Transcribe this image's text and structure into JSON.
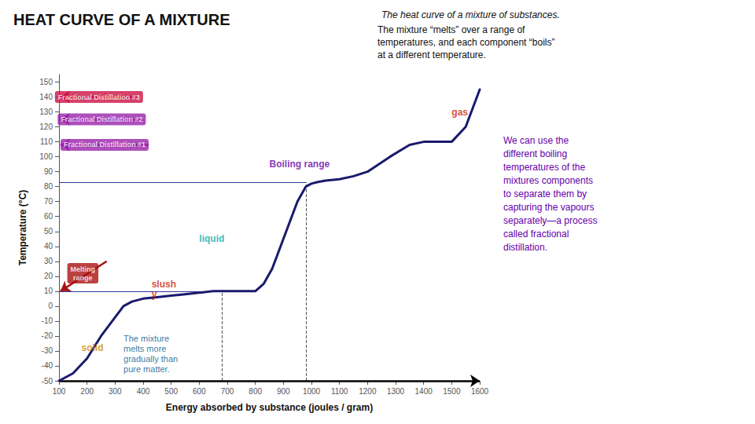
{
  "chart_data": {
    "type": "line",
    "title": "HEAT CURVE OF A MIXTURE",
    "subtitle": "The heat curve of a mixture of substances.",
    "x_label": "Energy absorbed by substance (joules / gram)",
    "y_label": "Temperature (°C)",
    "x": [
      100,
      150,
      200,
      250,
      290,
      310,
      330,
      360,
      400,
      450,
      500,
      550,
      600,
      650,
      680,
      700,
      730,
      760,
      800,
      830,
      860,
      900,
      950,
      980,
      1000,
      1020,
      1050,
      1100,
      1150,
      1200,
      1280,
      1350,
      1400,
      1450,
      1500,
      1550,
      1600
    ],
    "values": [
      -50,
      -45,
      -35,
      -20,
      -10,
      -5,
      0,
      3,
      5,
      6,
      7,
      8,
      9,
      10,
      10,
      10,
      10,
      10,
      10,
      15,
      25,
      45,
      70,
      80,
      82,
      83,
      84,
      85,
      87,
      90,
      100,
      108,
      110,
      110,
      110,
      120,
      145
    ],
    "color": "#1a1a6e",
    "xlim": [
      100,
      1600
    ],
    "ylim": [
      -50,
      155
    ],
    "xticks": [
      100,
      200,
      300,
      400,
      500,
      600,
      700,
      800,
      900,
      1000,
      1100,
      1200,
      1300,
      1400,
      1500,
      1600
    ],
    "yticks": [
      150,
      140,
      130,
      120,
      110,
      100,
      90,
      80,
      70,
      60,
      50,
      40,
      30,
      20,
      10,
      0,
      -10,
      -20,
      -30,
      -40,
      -50
    ],
    "grid": false,
    "reference_lines": [
      {
        "x": [
          100,
          680
        ],
        "y": [
          10,
          10
        ],
        "color": "#333399",
        "line_style": "solid"
      },
      {
        "x": [
          100,
          980
        ],
        "y": [
          83,
          83
        ],
        "color": "#333399",
        "line_style": "solid"
      },
      {
        "x": [
          680,
          680
        ],
        "y": [
          -50,
          10
        ],
        "color": "#555555",
        "line_style": "dashed"
      },
      {
        "x": [
          980,
          980
        ],
        "y": [
          -50,
          83
        ],
        "color": "#555555",
        "line_style": "dashed"
      }
    ],
    "arrows": [
      {
        "x": [
          100,
          1600
        ],
        "y": [
          -50,
          -50
        ],
        "color": "#000000"
      },
      {
        "x": [
          270,
          105
        ],
        "y": [
          30,
          10
        ],
        "color": "#aa1111"
      },
      {
        "x": [
          380,
          105
        ],
        "y": [
          140,
          140
        ],
        "color": "#cc1144"
      },
      {
        "x": [
          400,
          105
        ],
        "y": [
          125,
          125
        ],
        "color": "#9922aa"
      },
      {
        "x": [
          420,
          105
        ],
        "y": [
          108,
          108
        ],
        "color": "#9922aa"
      }
    ],
    "labels": [
      {
        "text": "solid",
        "x": 180,
        "y": -28,
        "color": "#cc8800"
      },
      {
        "text": "slush\ny",
        "x": 430,
        "y": 11,
        "color": "#cc2200"
      },
      {
        "text": "liquid",
        "x": 600,
        "y": 45,
        "color": "#00aaaa"
      },
      {
        "text": "gas",
        "x": 1500,
        "y": 130,
        "color": "#cc2200"
      },
      {
        "text": "Boiling range",
        "x": 850,
        "y": 95,
        "color": "#6600aa"
      }
    ],
    "tags": [
      {
        "text": "Melting\nrange",
        "x": 185,
        "y": 22,
        "color": "#aa1111"
      },
      {
        "text": "Fractional Distillation #3",
        "x": 242.5,
        "y": 140,
        "color": "#cc1144"
      },
      {
        "text": "Fractional Distillation #2",
        "x": 252.5,
        "y": 125,
        "color": "#9922aa"
      },
      {
        "text": "Fractional Distillation #1",
        "x": 262.5,
        "y": 108,
        "color": "#9922aa"
      }
    ],
    "note": {
      "text": "The mixture\nmelts more\ngradually than\npure matter.",
      "x": 330,
      "y": -18,
      "color": "#005588"
    },
    "text_top": {
      "text": "The mixture “melts” over a range of\ntemperatures, and each component “boils”\nat a different temperature.",
      "color": "#111111"
    },
    "text_side": {
      "text": "We can use the\ndifferent boiling\ntemperatures of the\nmixtures components\nto separate them by\ncapturing the vapours\nseparately—a process\ncalled fractional\ndistillation.",
      "color": "#6600aa"
    }
  }
}
